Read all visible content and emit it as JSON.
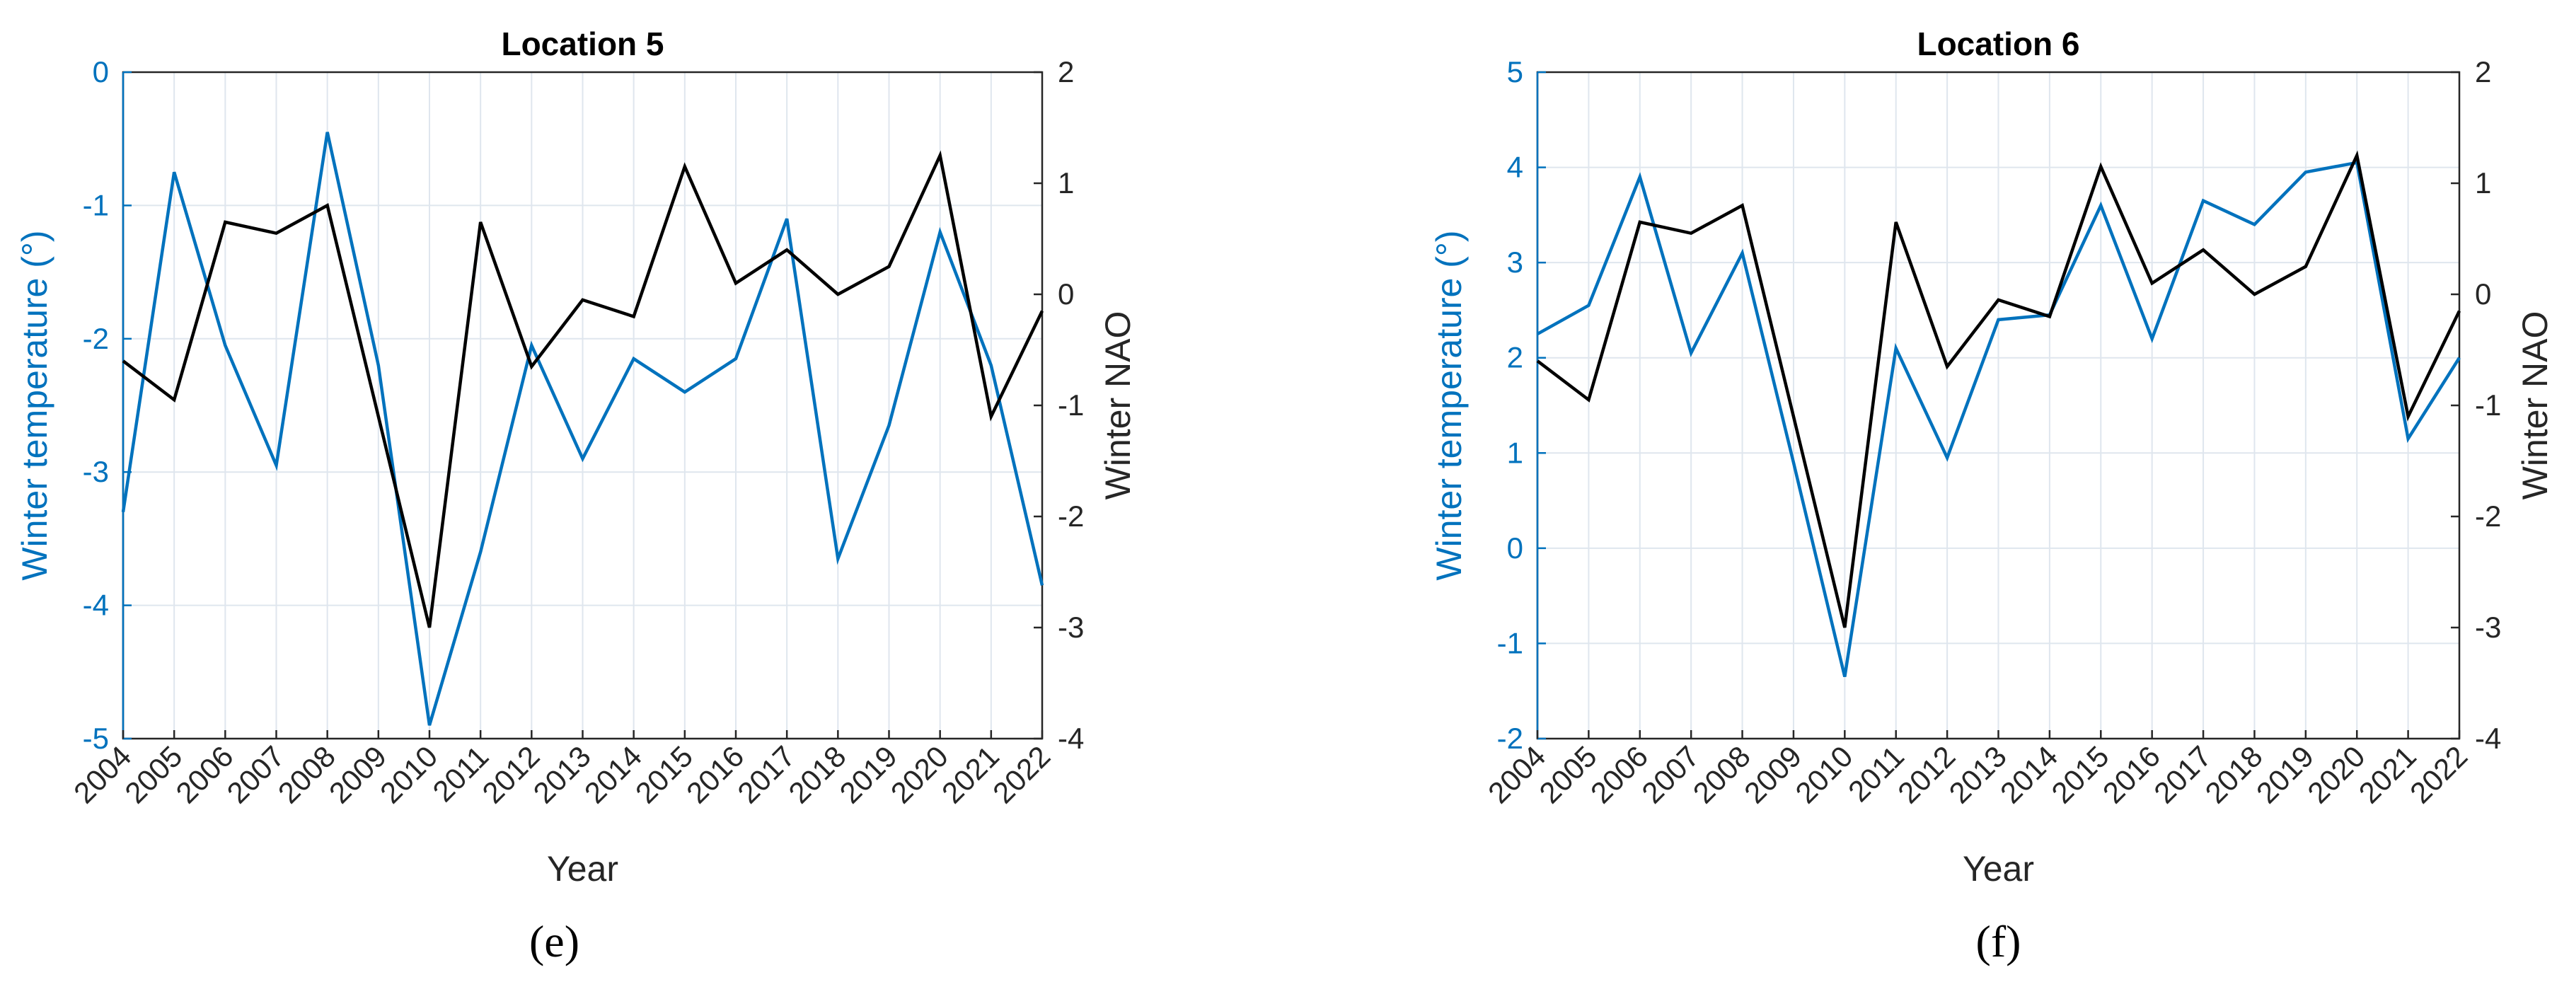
{
  "colors": {
    "temperature": "#0072BD",
    "nao": "#000000",
    "axis": "#262626",
    "grid": "#dfe6ee"
  },
  "chart_data": [
    {
      "type": "line",
      "title": "Location 5",
      "panel_label": "(e)",
      "xlabel": "Year",
      "ylabel_left": "Winter temperature (°)",
      "ylabel_right": "Winter NAO",
      "categories": [
        "2004",
        "2005",
        "2006",
        "2007",
        "2008",
        "2009",
        "2010",
        "2011",
        "2012",
        "2013",
        "2014",
        "2015",
        "2016",
        "2017",
        "2018",
        "2019",
        "2020",
        "2021",
        "2022"
      ],
      "ylim_left": [
        -5,
        0
      ],
      "yticks_left": [
        "-5",
        "-4",
        "-3",
        "-2",
        "-1",
        "0"
      ],
      "ylim_right": [
        -4,
        2
      ],
      "yticks_right": [
        "-4",
        "-3",
        "-2",
        "-1",
        "0",
        "1",
        "2"
      ],
      "grid": true,
      "series": [
        {
          "name": "Winter temperature",
          "axis": "left",
          "values": [
            -3.3,
            -0.75,
            -2.05,
            -2.95,
            -0.45,
            -2.2,
            -4.9,
            -3.6,
            -2.05,
            -2.9,
            -2.15,
            -2.4,
            -2.15,
            -1.1,
            -3.65,
            -2.65,
            -1.2,
            -2.2,
            -3.85
          ]
        },
        {
          "name": "Winter NAO",
          "axis": "right",
          "values": [
            -0.6,
            -0.95,
            0.65,
            0.55,
            0.8,
            -1.1,
            -3.0,
            0.65,
            -0.65,
            -0.05,
            -0.2,
            1.15,
            0.1,
            0.4,
            0.0,
            0.25,
            1.25,
            -1.1,
            -0.15
          ]
        }
      ]
    },
    {
      "type": "line",
      "title": "Location 6",
      "panel_label": "(f)",
      "xlabel": "Year",
      "ylabel_left": "Winter temperature (°)",
      "ylabel_right": "Winter NAO",
      "categories": [
        "2004",
        "2005",
        "2006",
        "2007",
        "2008",
        "2009",
        "2010",
        "2011",
        "2012",
        "2013",
        "2014",
        "2015",
        "2016",
        "2017",
        "2018",
        "2019",
        "2020",
        "2021",
        "2022"
      ],
      "ylim_left": [
        -2,
        5
      ],
      "yticks_left": [
        "-2",
        "-1",
        "0",
        "1",
        "2",
        "3",
        "4",
        "5"
      ],
      "ylim_right": [
        -4,
        2
      ],
      "yticks_right": [
        "-4",
        "-3",
        "-2",
        "-1",
        "0",
        "1",
        "2"
      ],
      "grid": true,
      "series": [
        {
          "name": "Winter temperature",
          "axis": "left",
          "values": [
            2.25,
            2.55,
            3.9,
            2.05,
            3.1,
            0.9,
            -1.35,
            2.1,
            0.95,
            2.4,
            2.45,
            3.6,
            2.2,
            3.65,
            3.4,
            3.95,
            4.05,
            1.15,
            2.0
          ]
        },
        {
          "name": "Winter NAO",
          "axis": "right",
          "values": [
            -0.6,
            -0.95,
            0.65,
            0.55,
            0.8,
            -1.1,
            -3.0,
            0.65,
            -0.65,
            -0.05,
            -0.2,
            1.15,
            0.1,
            0.4,
            0.0,
            0.25,
            1.25,
            -1.1,
            -0.15
          ]
        }
      ]
    }
  ]
}
